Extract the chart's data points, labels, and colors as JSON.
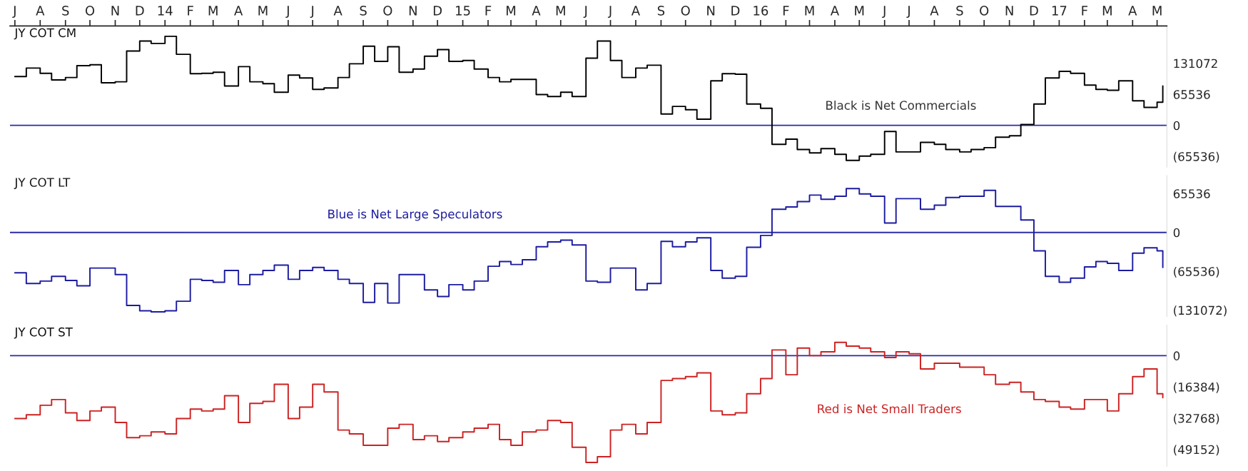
{
  "chart_data": [
    {
      "type": "step",
      "title": "JY COT CM",
      "annotations": [
        "Black is Net Commercials"
      ],
      "x": [
        "2013-07-01",
        "2013-07-15",
        "2013-08-01",
        "2013-08-15",
        "2013-09-01",
        "2013-09-15",
        "2013-10-01",
        "2013-10-15",
        "2013-11-01",
        "2013-11-15",
        "2013-12-01",
        "2013-12-15",
        "2014-01-01",
        "2014-01-15",
        "2014-02-01",
        "2014-02-15",
        "2014-03-01",
        "2014-03-15",
        "2014-04-01",
        "2014-04-15",
        "2014-05-01",
        "2014-05-15",
        "2014-06-01",
        "2014-06-15",
        "2014-07-01",
        "2014-07-15",
        "2014-08-01",
        "2014-08-15",
        "2014-09-01",
        "2014-09-15",
        "2014-10-01",
        "2014-10-15",
        "2014-11-01",
        "2014-11-15",
        "2014-12-01",
        "2014-12-15",
        "2015-01-01",
        "2015-01-15",
        "2015-02-01",
        "2015-02-15",
        "2015-03-01",
        "2015-03-15",
        "2015-04-01",
        "2015-04-15",
        "2015-05-01",
        "2015-05-15",
        "2015-06-01",
        "2015-06-15",
        "2015-07-01",
        "2015-07-15",
        "2015-08-01",
        "2015-08-15",
        "2015-09-01",
        "2015-09-15",
        "2015-10-01",
        "2015-10-15",
        "2015-11-01",
        "2015-11-15",
        "2015-12-01",
        "2015-12-15",
        "2016-01-01",
        "2016-01-15",
        "2016-02-01",
        "2016-02-15",
        "2016-03-01",
        "2016-03-15",
        "2016-04-01",
        "2016-04-15",
        "2016-05-01",
        "2016-05-15",
        "2016-06-01",
        "2016-06-15",
        "2016-07-01",
        "2016-07-15",
        "2016-08-01",
        "2016-08-15",
        "2016-09-01",
        "2016-09-15",
        "2016-10-01",
        "2016-10-15",
        "2016-11-01",
        "2016-11-15",
        "2016-12-01",
        "2016-12-15",
        "2017-01-01",
        "2017-01-15",
        "2017-02-01",
        "2017-02-15",
        "2017-03-01",
        "2017-03-15",
        "2017-04-01",
        "2017-04-15",
        "2017-05-01",
        "2017-05-08"
      ],
      "series": [
        {
          "color": "#000000",
          "values": [
            103000,
            121000,
            110000,
            96000,
            101000,
            126000,
            128000,
            90000,
            92000,
            157000,
            178000,
            173000,
            188000,
            150000,
            109000,
            110000,
            112000,
            83000,
            124000,
            92000,
            88000,
            70000,
            106000,
            100000,
            76000,
            79000,
            101000,
            130000,
            167000,
            135000,
            166000,
            112000,
            119000,
            146000,
            160000,
            135000,
            137000,
            119000,
            101000,
            92000,
            97000,
            97000,
            65000,
            61000,
            70000,
            61000,
            142000,
            178000,
            137000,
            101000,
            121000,
            127000,
            24000,
            40000,
            33000,
            13000,
            94000,
            109000,
            108000,
            45000,
            36000,
            -40000,
            -29000,
            -51000,
            -58000,
            -49000,
            -61000,
            -74000,
            -65000,
            -61000,
            -13000,
            -56000,
            -56000,
            -36000,
            -40000,
            -51000,
            -56000,
            -51000,
            -47000,
            -25000,
            -22000,
            2000,
            45000,
            100000,
            114000,
            110000,
            85000,
            76000,
            74000,
            94000,
            52000,
            38000,
            49000,
            83000
          ]
        }
      ],
      "xlim": [
        "2013-06-25",
        "2017-05-13"
      ],
      "xticks": [
        {
          "value": "2013-07-01",
          "label": "J"
        },
        {
          "value": "2013-08-01",
          "label": "A"
        },
        {
          "value": "2013-09-01",
          "label": "S"
        },
        {
          "value": "2013-10-01",
          "label": "O"
        },
        {
          "value": "2013-11-01",
          "label": "N"
        },
        {
          "value": "2013-12-01",
          "label": "D"
        },
        {
          "value": "2014-01-01",
          "label": "14"
        },
        {
          "value": "2014-02-01",
          "label": "F"
        },
        {
          "value": "2014-03-01",
          "label": "M"
        },
        {
          "value": "2014-04-01",
          "label": "A"
        },
        {
          "value": "2014-05-01",
          "label": "M"
        },
        {
          "value": "2014-06-01",
          "label": "J"
        },
        {
          "value": "2014-07-01",
          "label": "J"
        },
        {
          "value": "2014-08-01",
          "label": "A"
        },
        {
          "value": "2014-09-01",
          "label": "S"
        },
        {
          "value": "2014-10-01",
          "label": "O"
        },
        {
          "value": "2014-11-01",
          "label": "N"
        },
        {
          "value": "2014-12-01",
          "label": "D"
        },
        {
          "value": "2015-01-01",
          "label": "15"
        },
        {
          "value": "2015-02-01",
          "label": "F"
        },
        {
          "value": "2015-03-01",
          "label": "M"
        },
        {
          "value": "2015-04-01",
          "label": "A"
        },
        {
          "value": "2015-05-01",
          "label": "M"
        },
        {
          "value": "2015-06-01",
          "label": "J"
        },
        {
          "value": "2015-07-01",
          "label": "J"
        },
        {
          "value": "2015-08-01",
          "label": "A"
        },
        {
          "value": "2015-09-01",
          "label": "S"
        },
        {
          "value": "2015-10-01",
          "label": "O"
        },
        {
          "value": "2015-11-01",
          "label": "N"
        },
        {
          "value": "2015-12-01",
          "label": "D"
        },
        {
          "value": "2016-01-01",
          "label": "16"
        },
        {
          "value": "2016-02-01",
          "label": "F"
        },
        {
          "value": "2016-03-01",
          "label": "M"
        },
        {
          "value": "2016-04-01",
          "label": "A"
        },
        {
          "value": "2016-05-01",
          "label": "M"
        },
        {
          "value": "2016-06-01",
          "label": "J"
        },
        {
          "value": "2016-07-01",
          "label": "J"
        },
        {
          "value": "2016-08-01",
          "label": "A"
        },
        {
          "value": "2016-09-01",
          "label": "S"
        },
        {
          "value": "2016-10-01",
          "label": "O"
        },
        {
          "value": "2016-11-01",
          "label": "N"
        },
        {
          "value": "2016-12-01",
          "label": "D"
        },
        {
          "value": "2017-01-01",
          "label": "17"
        },
        {
          "value": "2017-02-01",
          "label": "F"
        },
        {
          "value": "2017-03-01",
          "label": "M"
        },
        {
          "value": "2017-04-01",
          "label": "A"
        },
        {
          "value": "2017-05-01",
          "label": "M"
        }
      ],
      "ylim": [
        -88000,
        210000
      ],
      "yticks": [
        {
          "value": 131072,
          "label": "131072"
        },
        {
          "value": 65536,
          "label": "65536"
        },
        {
          "value": 0,
          "label": "0"
        },
        {
          "value": -65536,
          "label": "(65536)"
        }
      ],
      "ref_lines": [
        {
          "axis": "y",
          "value": 0,
          "color": "#2a2aa8"
        }
      ]
    },
    {
      "type": "step",
      "title": "JY COT LT",
      "annotations": [
        "Blue is Net Large Speculators"
      ],
      "tick_labels": "y",
      "x": [
        "2013-07-01",
        "2013-07-15",
        "2013-08-01",
        "2013-08-15",
        "2013-09-01",
        "2013-09-15",
        "2013-10-01",
        "2013-10-15",
        "2013-11-01",
        "2013-11-15",
        "2013-12-01",
        "2013-12-15",
        "2014-01-01",
        "2014-01-15",
        "2014-02-01",
        "2014-02-15",
        "2014-03-01",
        "2014-03-15",
        "2014-04-01",
        "2014-04-15",
        "2014-05-01",
        "2014-05-15",
        "2014-06-01",
        "2014-06-15",
        "2014-07-01",
        "2014-07-15",
        "2014-08-01",
        "2014-08-15",
        "2014-09-01",
        "2014-09-15",
        "2014-10-01",
        "2014-10-15",
        "2014-11-01",
        "2014-11-15",
        "2014-12-01",
        "2014-12-15",
        "2015-01-01",
        "2015-01-15",
        "2015-02-01",
        "2015-02-15",
        "2015-03-01",
        "2015-03-15",
        "2015-04-01",
        "2015-04-15",
        "2015-05-01",
        "2015-05-15",
        "2015-06-01",
        "2015-06-15",
        "2015-07-01",
        "2015-07-15",
        "2015-08-01",
        "2015-08-15",
        "2015-09-01",
        "2015-09-15",
        "2015-10-01",
        "2015-10-15",
        "2015-11-01",
        "2015-11-15",
        "2015-12-01",
        "2015-12-15",
        "2016-01-01",
        "2016-01-15",
        "2016-02-01",
        "2016-02-15",
        "2016-03-01",
        "2016-03-15",
        "2016-04-01",
        "2016-04-15",
        "2016-05-01",
        "2016-05-15",
        "2016-06-01",
        "2016-06-15",
        "2016-07-01",
        "2016-07-15",
        "2016-08-01",
        "2016-08-15",
        "2016-09-01",
        "2016-09-15",
        "2016-10-01",
        "2016-10-15",
        "2016-11-01",
        "2016-11-15",
        "2016-12-01",
        "2016-12-15",
        "2017-01-01",
        "2017-01-15",
        "2017-02-01",
        "2017-02-15",
        "2017-03-01",
        "2017-03-15",
        "2017-04-01",
        "2017-04-15",
        "2017-05-01",
        "2017-05-08"
      ],
      "series": [
        {
          "color": "#1c1ca0",
          "values": [
            -68000,
            -86000,
            -82000,
            -74000,
            -81000,
            -90000,
            -60000,
            -60000,
            -71000,
            -123000,
            -132000,
            -134000,
            -132000,
            -116000,
            -79000,
            -81000,
            -84000,
            -64000,
            -88000,
            -71000,
            -64000,
            -55000,
            -79000,
            -64000,
            -59000,
            -64000,
            -79000,
            -86000,
            -118000,
            -86000,
            -119000,
            -71000,
            -71000,
            -97000,
            -108000,
            -88000,
            -97000,
            -82000,
            -57000,
            -49000,
            -54000,
            -46000,
            -24000,
            -16000,
            -13000,
            -21000,
            -82000,
            -84000,
            -60000,
            -60000,
            -97000,
            -86000,
            -15000,
            -24000,
            -16000,
            -9000,
            -64000,
            -77000,
            -74000,
            -25000,
            -5000,
            39000,
            43000,
            52000,
            63000,
            56000,
            61000,
            74000,
            65000,
            61000,
            16000,
            57000,
            57000,
            39000,
            46000,
            59000,
            61000,
            61000,
            71000,
            44000,
            44000,
            21000,
            -31000,
            -74000,
            -84000,
            -77000,
            -58000,
            -49000,
            -52000,
            -64000,
            -35000,
            -26000,
            -31000,
            -59000
          ]
        }
      ],
      "xlim": [
        "2013-06-25",
        "2017-05-13"
      ],
      "ylim": [
        -142000,
        96000
      ],
      "yticks": [
        {
          "value": 65536,
          "label": "65536"
        },
        {
          "value": 0,
          "label": "0"
        },
        {
          "value": -65536,
          "label": "(65536)"
        },
        {
          "value": -131072,
          "label": "(131072)"
        }
      ],
      "ref_lines": [
        {
          "axis": "y",
          "value": 0,
          "color": "#2a2aa8"
        }
      ]
    },
    {
      "type": "step",
      "title": "JY COT ST",
      "annotations": [
        "Red is Net Small Traders"
      ],
      "tick_labels": "y",
      "x": [
        "2013-07-01",
        "2013-07-15",
        "2013-08-01",
        "2013-08-15",
        "2013-09-01",
        "2013-09-15",
        "2013-10-01",
        "2013-10-15",
        "2013-11-01",
        "2013-11-15",
        "2013-12-01",
        "2013-12-15",
        "2014-01-01",
        "2014-01-15",
        "2014-02-01",
        "2014-02-15",
        "2014-03-01",
        "2014-03-15",
        "2014-04-01",
        "2014-04-15",
        "2014-05-01",
        "2014-05-15",
        "2014-06-01",
        "2014-06-15",
        "2014-07-01",
        "2014-07-15",
        "2014-08-01",
        "2014-08-15",
        "2014-09-01",
        "2014-09-15",
        "2014-10-01",
        "2014-10-15",
        "2014-11-01",
        "2014-11-15",
        "2014-12-01",
        "2014-12-15",
        "2015-01-01",
        "2015-01-15",
        "2015-02-01",
        "2015-02-15",
        "2015-03-01",
        "2015-03-15",
        "2015-04-01",
        "2015-04-15",
        "2015-05-01",
        "2015-05-15",
        "2015-06-01",
        "2015-06-15",
        "2015-07-01",
        "2015-07-15",
        "2015-08-01",
        "2015-08-15",
        "2015-09-01",
        "2015-09-15",
        "2015-10-01",
        "2015-10-15",
        "2015-11-01",
        "2015-11-15",
        "2015-12-01",
        "2015-12-15",
        "2016-01-01",
        "2016-01-15",
        "2016-02-01",
        "2016-02-15",
        "2016-03-01",
        "2016-03-15",
        "2016-04-01",
        "2016-04-15",
        "2016-05-01",
        "2016-05-15",
        "2016-06-01",
        "2016-06-15",
        "2016-07-01",
        "2016-07-15",
        "2016-08-01",
        "2016-08-15",
        "2016-09-01",
        "2016-09-15",
        "2016-10-01",
        "2016-10-15",
        "2016-11-01",
        "2016-11-15",
        "2016-12-01",
        "2016-12-15",
        "2017-01-01",
        "2017-01-15",
        "2017-02-01",
        "2017-02-15",
        "2017-03-01",
        "2017-03-15",
        "2017-04-01",
        "2017-04-15",
        "2017-05-01",
        "2017-05-08"
      ],
      "series": [
        {
          "color": "#cc2222",
          "values": [
            -33000,
            -31000,
            -26000,
            -23000,
            -30000,
            -34000,
            -29000,
            -27000,
            -35000,
            -43000,
            -42000,
            -40000,
            -41000,
            -33000,
            -28000,
            -29000,
            -28000,
            -21000,
            -35000,
            -25000,
            -24000,
            -15000,
            -33000,
            -27000,
            -15000,
            -19000,
            -39000,
            -41000,
            -47000,
            -47000,
            -38000,
            -36000,
            -44000,
            -42000,
            -45000,
            -43000,
            -40000,
            -38000,
            -36000,
            -44000,
            -47000,
            -40000,
            -39000,
            -34000,
            -35000,
            -48000,
            -56000,
            -53000,
            -39000,
            -36000,
            -41000,
            -35000,
            -13000,
            -12000,
            -11000,
            -9000,
            -29000,
            -31000,
            -30000,
            -20000,
            -12000,
            3000,
            -10000,
            4000,
            0,
            2000,
            7000,
            5000,
            4000,
            2000,
            -1000,
            2000,
            1000,
            -7000,
            -4000,
            -4000,
            -6000,
            -6000,
            -10000,
            -15000,
            -14000,
            -19000,
            -23000,
            -24000,
            -27000,
            -28000,
            -23000,
            -23000,
            -29000,
            -20000,
            -11000,
            -7000,
            -20000,
            -22000
          ]
        }
      ],
      "xlim": [
        "2013-06-25",
        "2017-05-13"
      ],
      "ylim": [
        -58000,
        16000
      ],
      "yticks": [
        {
          "value": 0,
          "label": "0"
        },
        {
          "value": -16384,
          "label": "(16384)"
        },
        {
          "value": -32768,
          "label": "(32768)"
        },
        {
          "value": -49152,
          "label": "(49152)"
        }
      ],
      "ref_lines": [
        {
          "axis": "y",
          "value": 0,
          "color": "#2a2aa8"
        }
      ]
    }
  ]
}
